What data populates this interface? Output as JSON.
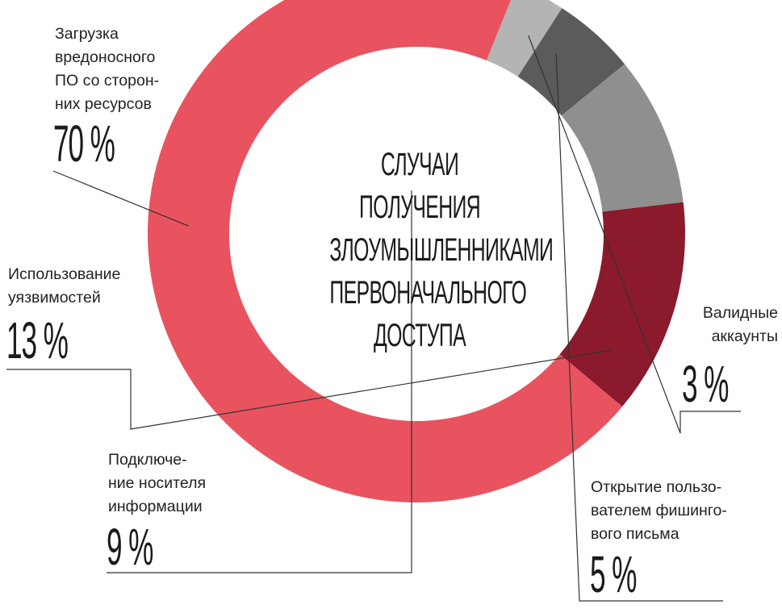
{
  "center_title_lines": [
    "СЛУЧАИ",
    "ПОЛУЧЕНИЯ",
    "ЗЛОУМЫШЛЕННИКАМИ",
    "ПЕРВОНАЧАЛЬНОГО",
    "ДОСТУПА"
  ],
  "colors": {
    "malware": "#e8535f",
    "vulns": "#8a1a2c",
    "media": "#8f8f8f",
    "phishing": "#5b5b5b",
    "accounts": "#b4b4b4",
    "leader": "#333333"
  },
  "chart_data": {
    "type": "pie",
    "donut": true,
    "title": "СЛУЧАИ ПОЛУЧЕНИЯ ЗЛОУМЫШЛЕННИКАМИ ПЕРВОНАЧАЛЬНОГО ДОСТУПА",
    "slices": [
      {
        "label": "Загрузка вредоносного ПО со сторонних ресурсов",
        "label_lines": [
          "Загрузка",
          "вредоносного",
          "ПО со сторон-",
          "них ресурсов"
        ],
        "value": 70,
        "value_text": "70 %",
        "color_key": "malware"
      },
      {
        "label": "Валидные аккаунты",
        "label_lines": [
          "Валидные",
          "аккаунты"
        ],
        "value": 3,
        "value_text": "3 %",
        "color_key": "accounts"
      },
      {
        "label": "Открытие пользователем фишингового письма",
        "label_lines": [
          "Открытие пользо-",
          "вателем фишинго-",
          "вого письма"
        ],
        "value": 5,
        "value_text": "5 %",
        "color_key": "phishing"
      },
      {
        "label": "Подключение носителя информации",
        "label_lines": [
          "Подключе-",
          "ние носителя",
          "информации"
        ],
        "value": 9,
        "value_text": "9 %",
        "color_key": "media"
      },
      {
        "label": "Использование уязвимостей",
        "label_lines": [
          "Использование",
          "уязвимостей"
        ],
        "value": 13,
        "value_text": "13 %",
        "color_key": "vulns"
      }
    ]
  }
}
